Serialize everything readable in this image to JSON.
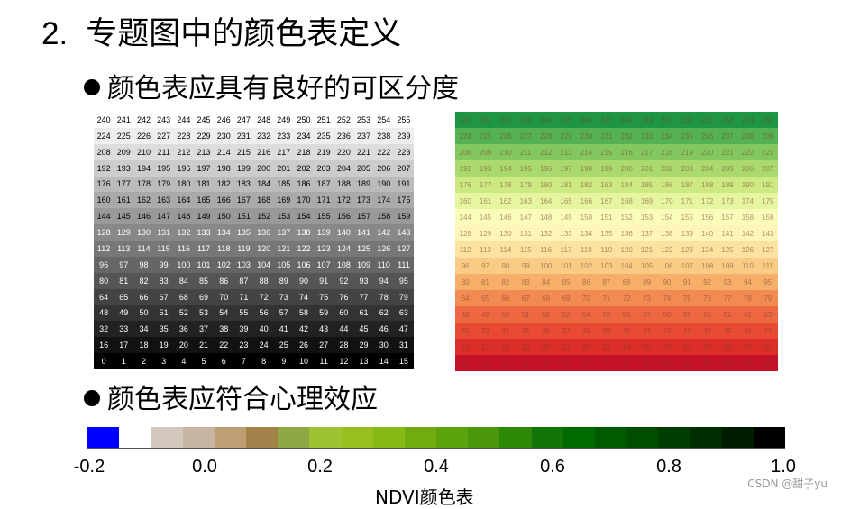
{
  "title": {
    "number": "2.",
    "text": "专题图中的颜色表定义"
  },
  "bullets": [
    "颜色表应具有良好的可区分度",
    "颜色表应符合心理效应"
  ],
  "tables": {
    "rows": 16,
    "cols": 16,
    "start_top_left": 240
  },
  "colorbar": {
    "label": "NDVI颜色表",
    "ticks": [
      "-0.2",
      "0.0",
      "0.2",
      "0.4",
      "0.6",
      "0.8",
      "1.0"
    ],
    "colors": [
      "#0000ff",
      "#ffffff",
      "#d2c8bb",
      "#c7b5a3",
      "#bf9e74",
      "#a3824a",
      "#8da845",
      "#9dc332",
      "#97bf1f",
      "#86b816",
      "#70ab0f",
      "#5ba20c",
      "#4b970b",
      "#2c8a08",
      "#117607",
      "#006a00",
      "#005a00",
      "#004c00",
      "#003d00",
      "#002d00",
      "#001c00",
      "#000000"
    ]
  },
  "watermark": "CSDN @甜子yu"
}
